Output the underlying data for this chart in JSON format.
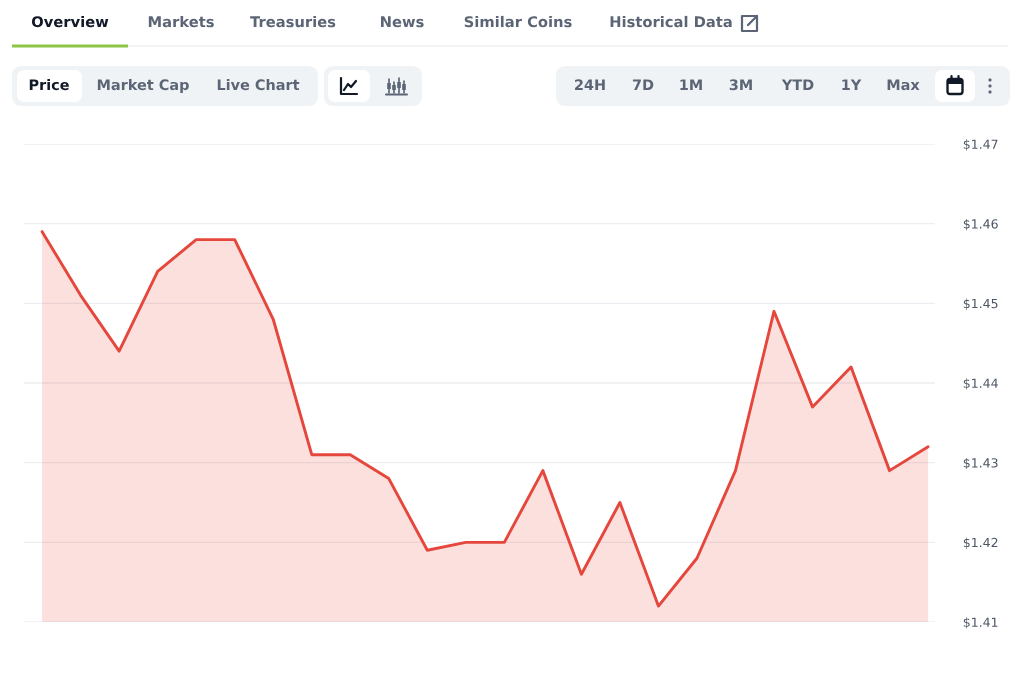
{
  "chart_data": {
    "type": "area",
    "categories": [
      null,
      null,
      null,
      null,
      null,
      null,
      null,
      null,
      null,
      null,
      null,
      null,
      null,
      null,
      null,
      null,
      null,
      null,
      null,
      null,
      null,
      null,
      null,
      null
    ],
    "series": [
      {
        "color": "#e5473d",
        "values": [
          1.459,
          1.451,
          1.444,
          1.454,
          1.458,
          1.458,
          1.448,
          1.431,
          1.431,
          1.428,
          1.419,
          1.42,
          1.42,
          1.429,
          1.416,
          1.425,
          1.412,
          1.418,
          1.429,
          1.449,
          1.437,
          1.442,
          1.429,
          1.432
        ]
      }
    ],
    "ylim": [
      1.41,
      1.47
    ],
    "yticks": [
      {
        "value": 1.41,
        "label": "$1.41"
      },
      {
        "value": 1.42,
        "label": "$1.42"
      },
      {
        "value": 1.43,
        "label": "$1.43"
      },
      {
        "value": 1.44,
        "label": "$1.44"
      },
      {
        "value": 1.45,
        "label": "$1.45"
      },
      {
        "value": 1.46,
        "label": "$1.46"
      },
      {
        "value": 1.47,
        "label": "$1.47"
      }
    ],
    "grid": "y",
    "tick_labels": "y",
    "annotations": [
      "Overview",
      "Markets",
      "Treasuries",
      "News",
      "Similar Coins",
      "Historical Data",
      "Price",
      "Market Cap",
      "Live Chart",
      "24H",
      "7D",
      "1M",
      "3M",
      "YTD",
      "1Y",
      "Max"
    ]
  }
}
